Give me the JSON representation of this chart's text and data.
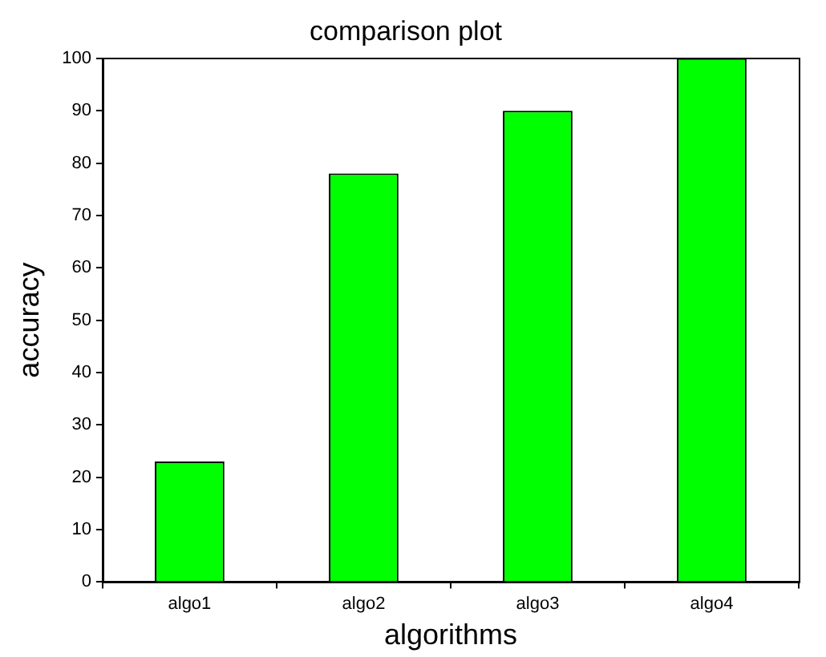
{
  "chart_data": {
    "type": "bar",
    "title": "comparison plot",
    "xlabel": "algorithms",
    "ylabel": "accuracy",
    "categories": [
      "algo1",
      "algo2",
      "algo3",
      "algo4"
    ],
    "values": [
      23,
      78,
      90,
      100
    ],
    "color": "#00ff00",
    "ylim": [
      0,
      100
    ],
    "yticks": [
      0,
      10,
      20,
      30,
      40,
      50,
      60,
      70,
      80,
      90,
      100
    ],
    "grid": false,
    "legend": false
  }
}
